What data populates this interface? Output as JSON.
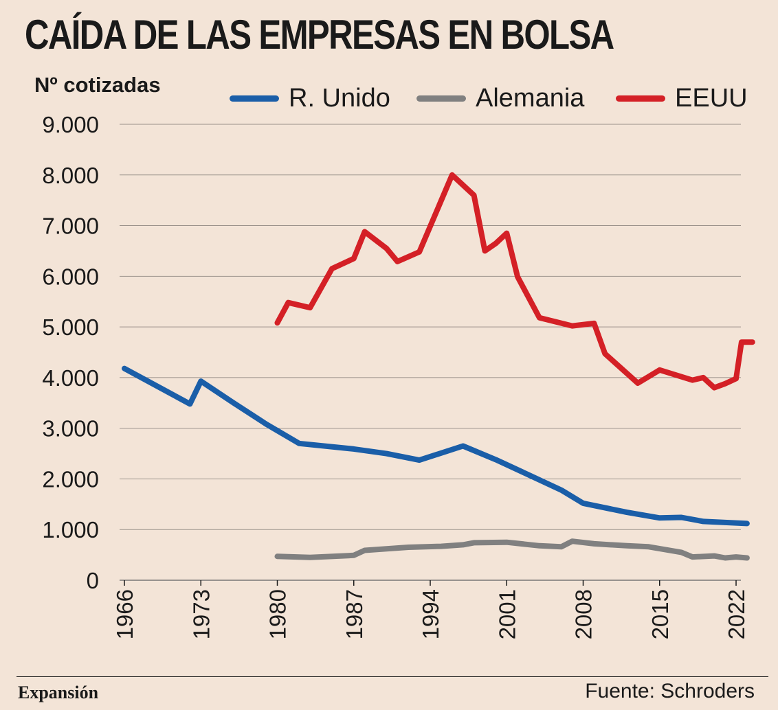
{
  "header": {
    "title": "CAÍDA DE LAS EMPRESAS EN BOLSA",
    "unit_label": "Nº cotizadas"
  },
  "footer": {
    "brand": "Expansión",
    "source": "Fuente: Schroders"
  },
  "chart_data": {
    "type": "line",
    "title": "CAÍDA DE LAS EMPRESAS EN BOLSA",
    "ylabel": "Nº cotizadas",
    "xlabel": "",
    "xlim": [
      1966,
      2023
    ],
    "ylim": [
      0,
      9000
    ],
    "yticks": [
      0,
      1000,
      2000,
      3000,
      4000,
      5000,
      6000,
      7000,
      8000,
      9000
    ],
    "ytick_labels": [
      "0",
      "1.000",
      "2.000",
      "3.000",
      "4.000",
      "5.000",
      "6.000",
      "7.000",
      "8.000",
      "9.000"
    ],
    "xticks": [
      1966,
      1973,
      1980,
      1987,
      1994,
      2001,
      2008,
      2015,
      2022
    ],
    "xtick_labels": [
      "1966",
      "1973",
      "1980",
      "1987",
      "1994",
      "2001",
      "2008",
      "2015",
      "2022"
    ],
    "grid": true,
    "legend": "top",
    "series": [
      {
        "name": "R. Unido",
        "color": "#1a5ea8",
        "points": [
          [
            1966,
            4180
          ],
          [
            1972,
            3480
          ],
          [
            1973,
            3930
          ],
          [
            1976,
            3500
          ],
          [
            1979,
            3080
          ],
          [
            1982,
            2700
          ],
          [
            1987,
            2590
          ],
          [
            1990,
            2500
          ],
          [
            1993,
            2370
          ],
          [
            1997,
            2650
          ],
          [
            2000,
            2380
          ],
          [
            2003,
            2080
          ],
          [
            2006,
            1780
          ],
          [
            2008,
            1520
          ],
          [
            2012,
            1340
          ],
          [
            2015,
            1230
          ],
          [
            2017,
            1240
          ],
          [
            2019,
            1160
          ],
          [
            2023,
            1120
          ]
        ]
      },
      {
        "name": "Alemania",
        "color": "#808080",
        "points": [
          [
            1980,
            470
          ],
          [
            1983,
            450
          ],
          [
            1987,
            490
          ],
          [
            1988,
            590
          ],
          [
            1992,
            650
          ],
          [
            1995,
            670
          ],
          [
            1997,
            700
          ],
          [
            1998,
            740
          ],
          [
            2001,
            750
          ],
          [
            2004,
            680
          ],
          [
            2006,
            660
          ],
          [
            2007,
            770
          ],
          [
            2009,
            720
          ],
          [
            2012,
            680
          ],
          [
            2014,
            660
          ],
          [
            2017,
            550
          ],
          [
            2018,
            460
          ],
          [
            2020,
            480
          ],
          [
            2021,
            440
          ],
          [
            2022,
            460
          ],
          [
            2023,
            440
          ]
        ]
      },
      {
        "name": "EEUU",
        "color": "#d42026",
        "points": [
          [
            1980,
            5080
          ],
          [
            1981,
            5480
          ],
          [
            1983,
            5380
          ],
          [
            1985,
            6150
          ],
          [
            1987,
            6350
          ],
          [
            1988,
            6880
          ],
          [
            1990,
            6550
          ],
          [
            1991,
            6290
          ],
          [
            1993,
            6480
          ],
          [
            1996,
            8000
          ],
          [
            1998,
            7600
          ],
          [
            1999,
            6500
          ],
          [
            2000,
            6650
          ],
          [
            2001,
            6850
          ],
          [
            2002,
            5990
          ],
          [
            2004,
            5180
          ],
          [
            2007,
            5020
          ],
          [
            2009,
            5070
          ],
          [
            2010,
            4470
          ],
          [
            2013,
            3890
          ],
          [
            2015,
            4150
          ],
          [
            2018,
            3950
          ],
          [
            2019,
            4000
          ],
          [
            2020,
            3800
          ],
          [
            2021,
            3880
          ],
          [
            2022,
            3980
          ],
          [
            2022.5,
            4700
          ],
          [
            2023.5,
            4700
          ]
        ]
      }
    ]
  }
}
